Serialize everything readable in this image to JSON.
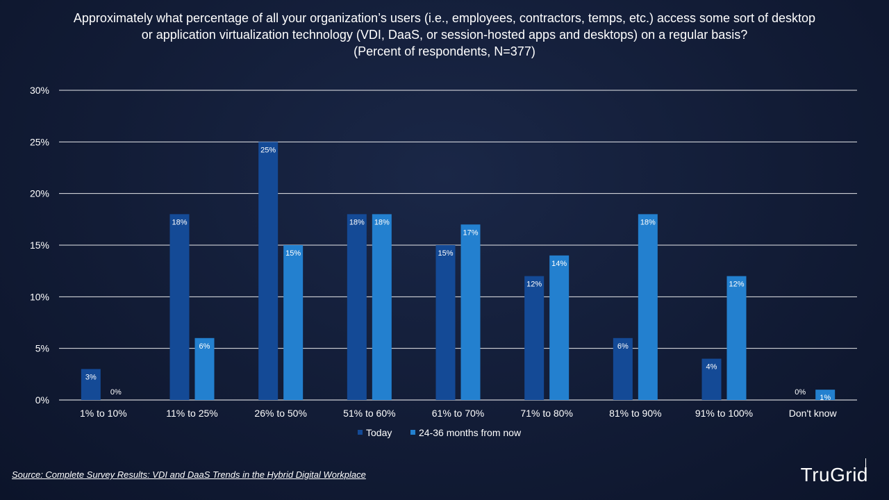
{
  "title": {
    "line1": "Approximately what percentage of all your organization’s users (i.e., employees, contractors, temps, etc.) access some sort of desktop",
    "line2": "or application virtualization technology (VDI, DaaS, or session-hosted apps and desktops) on a regular basis?",
    "line3": "(Percent of respondents, N=377)"
  },
  "source": "Source: Complete Survey Results: VDI and DaaS Trends in the Hybrid Digital Workplace",
  "logo": "TruGrid",
  "colors": {
    "today": "#144a96",
    "future": "#2380cf",
    "grid": "#ffffff",
    "text": "#ffffff"
  },
  "chart_data": {
    "type": "bar",
    "categories": [
      "1% to 10%",
      "11% to 25%",
      "26% to 50%",
      "51% to 60%",
      "61% to 70%",
      "71% to 80%",
      "81% to 90%",
      "91% to 100%",
      "Don't know"
    ],
    "series": [
      {
        "name": "Today",
        "values": [
          3,
          18,
          25,
          18,
          15,
          12,
          6,
          4,
          0
        ],
        "labels": [
          "3%",
          "18%",
          "25%",
          "18%",
          "15%",
          "12%",
          "6%",
          "4%",
          "0%"
        ]
      },
      {
        "name": "24-36 months from now",
        "values": [
          0,
          6,
          15,
          18,
          17,
          14,
          18,
          12,
          1
        ],
        "labels": [
          "0%",
          "6%",
          "15%",
          "18%",
          "17%",
          "14%",
          "18%",
          "12%",
          "1%"
        ]
      }
    ],
    "yticks": [
      "0%",
      "5%",
      "10%",
      "15%",
      "20%",
      "25%",
      "30%"
    ],
    "ylim": [
      0,
      30
    ],
    "grid": true,
    "legend": "bottom"
  }
}
